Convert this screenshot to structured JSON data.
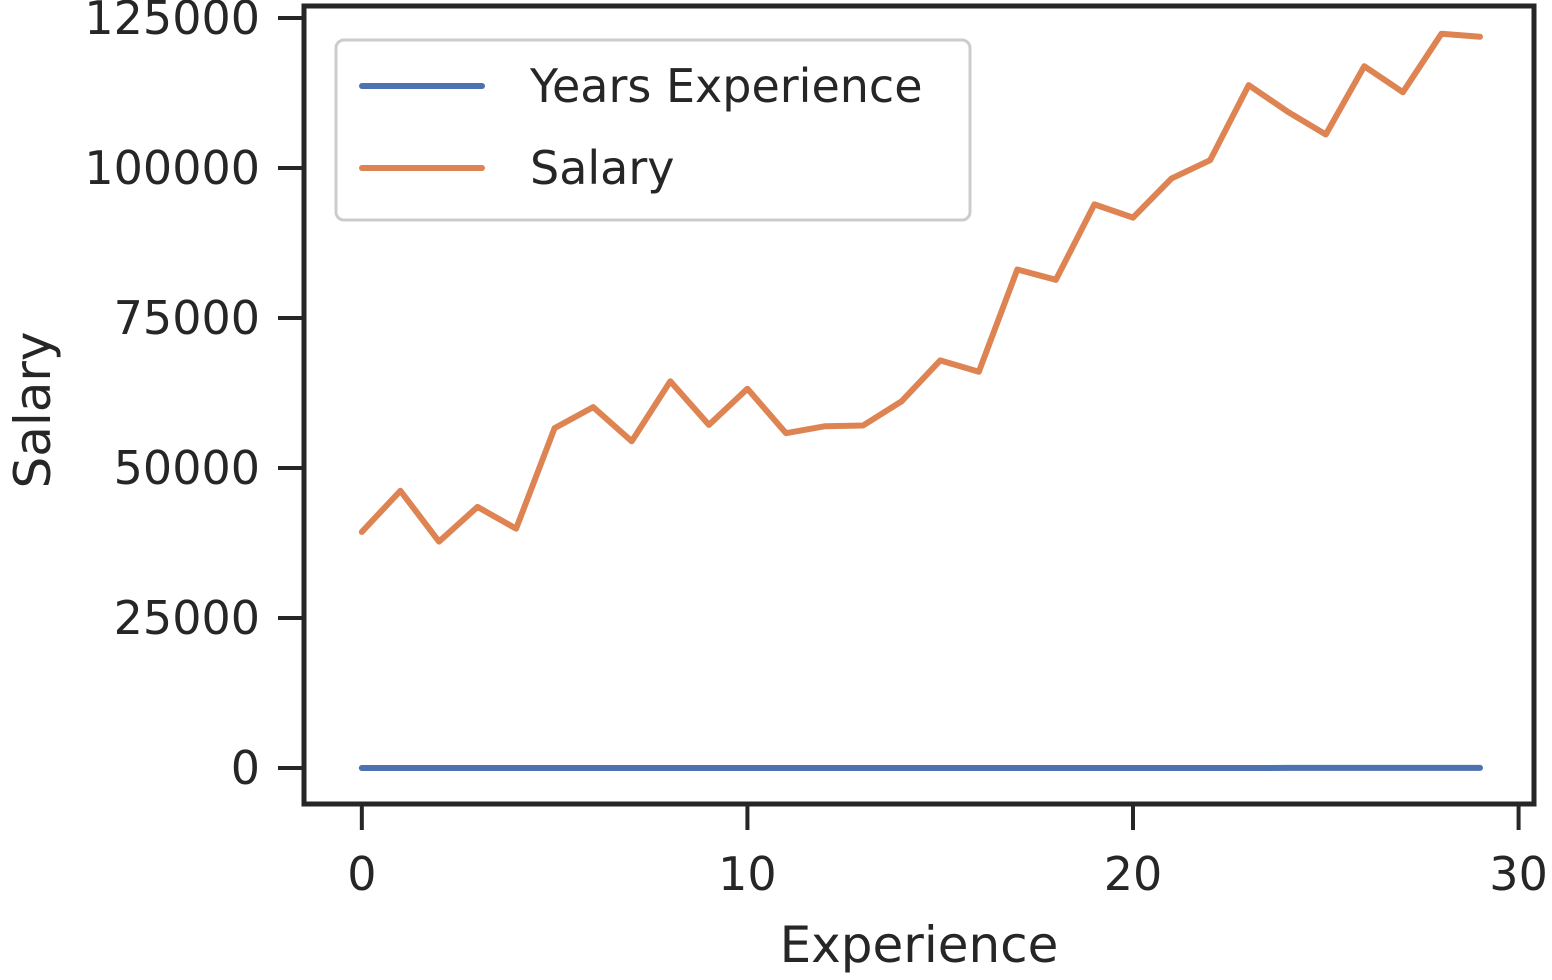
{
  "chart_data": {
    "type": "line",
    "title": "",
    "xlabel": "Experience",
    "ylabel": "Salary",
    "xlim": [
      -1.5,
      30.4
    ],
    "ylim": [
      -6000,
      127000
    ],
    "xticks": [
      0,
      10,
      20,
      30
    ],
    "yticks": [
      0,
      25000,
      50000,
      75000,
      100000,
      125000
    ],
    "grid": false,
    "legend_position": "top-left",
    "x": [
      0,
      1,
      2,
      3,
      4,
      5,
      6,
      7,
      8,
      9,
      10,
      11,
      12,
      13,
      14,
      15,
      16,
      17,
      18,
      19,
      20,
      21,
      22,
      23,
      24,
      25,
      26,
      27,
      28,
      29
    ],
    "series": [
      {
        "name": "Years Experience",
        "color": "#4c72b0",
        "values": [
          1.1,
          1.3,
          1.5,
          2.0,
          2.2,
          2.9,
          3.0,
          3.2,
          3.2,
          3.7,
          3.9,
          4.0,
          4.0,
          4.1,
          4.5,
          4.9,
          5.1,
          5.3,
          5.9,
          6.0,
          6.8,
          7.1,
          7.9,
          8.2,
          8.7,
          9.0,
          9.5,
          9.6,
          10.3,
          10.5
        ]
      },
      {
        "name": "Salary",
        "color": "#dd8452",
        "values": [
          39343,
          46205,
          37731,
          43525,
          39891,
          56642,
          60150,
          54445,
          64445,
          57189,
          63218,
          55794,
          56957,
          57081,
          61111,
          67938,
          66029,
          83088,
          81363,
          93940,
          91738,
          98273,
          101302,
          113812,
          109431,
          105582,
          116969,
          112635,
          122391,
          121872
        ]
      }
    ]
  }
}
